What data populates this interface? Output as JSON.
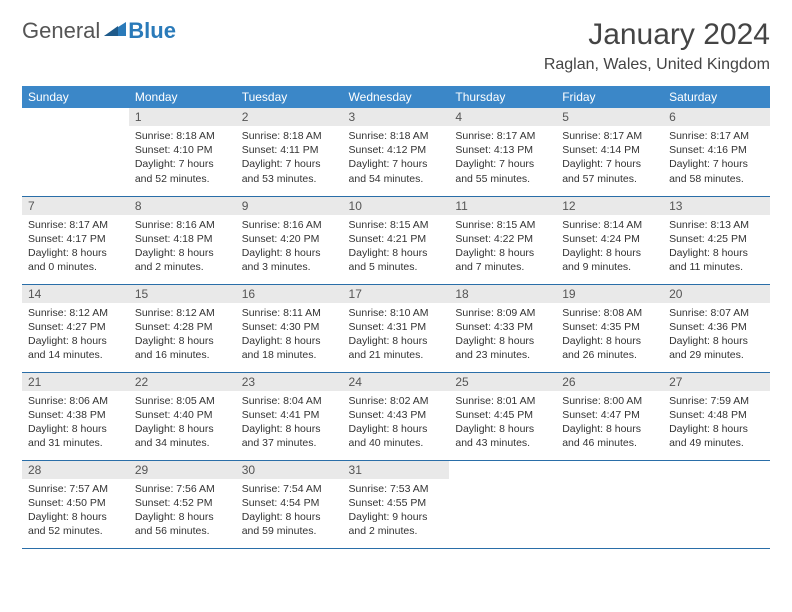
{
  "logo": {
    "text1": "General",
    "text2": "Blue"
  },
  "title": "January 2024",
  "location": "Raglan, Wales, United Kingdom",
  "colors": {
    "header_bg": "#3b87c8",
    "header_text": "#ffffff",
    "daynum_bg": "#e9e9e9",
    "daynum_text": "#555555",
    "row_border": "#2a6ea8",
    "body_text": "#333333",
    "logo_gray": "#555555",
    "logo_blue": "#2a7ab9",
    "page_bg": "#ffffff"
  },
  "typography": {
    "title_fontsize": 30,
    "location_fontsize": 16,
    "dayheader_fontsize": 12,
    "daynum_fontsize": 12,
    "body_fontsize": 10.5
  },
  "day_headers": [
    "Sunday",
    "Monday",
    "Tuesday",
    "Wednesday",
    "Thursday",
    "Friday",
    "Saturday"
  ],
  "weeks": [
    [
      null,
      {
        "n": "1",
        "sr": "8:18 AM",
        "ss": "4:10 PM",
        "dl": "7 hours and 52 minutes."
      },
      {
        "n": "2",
        "sr": "8:18 AM",
        "ss": "4:11 PM",
        "dl": "7 hours and 53 minutes."
      },
      {
        "n": "3",
        "sr": "8:18 AM",
        "ss": "4:12 PM",
        "dl": "7 hours and 54 minutes."
      },
      {
        "n": "4",
        "sr": "8:17 AM",
        "ss": "4:13 PM",
        "dl": "7 hours and 55 minutes."
      },
      {
        "n": "5",
        "sr": "8:17 AM",
        "ss": "4:14 PM",
        "dl": "7 hours and 57 minutes."
      },
      {
        "n": "6",
        "sr": "8:17 AM",
        "ss": "4:16 PM",
        "dl": "7 hours and 58 minutes."
      }
    ],
    [
      {
        "n": "7",
        "sr": "8:17 AM",
        "ss": "4:17 PM",
        "dl": "8 hours and 0 minutes."
      },
      {
        "n": "8",
        "sr": "8:16 AM",
        "ss": "4:18 PM",
        "dl": "8 hours and 2 minutes."
      },
      {
        "n": "9",
        "sr": "8:16 AM",
        "ss": "4:20 PM",
        "dl": "8 hours and 3 minutes."
      },
      {
        "n": "10",
        "sr": "8:15 AM",
        "ss": "4:21 PM",
        "dl": "8 hours and 5 minutes."
      },
      {
        "n": "11",
        "sr": "8:15 AM",
        "ss": "4:22 PM",
        "dl": "8 hours and 7 minutes."
      },
      {
        "n": "12",
        "sr": "8:14 AM",
        "ss": "4:24 PM",
        "dl": "8 hours and 9 minutes."
      },
      {
        "n": "13",
        "sr": "8:13 AM",
        "ss": "4:25 PM",
        "dl": "8 hours and 11 minutes."
      }
    ],
    [
      {
        "n": "14",
        "sr": "8:12 AM",
        "ss": "4:27 PM",
        "dl": "8 hours and 14 minutes."
      },
      {
        "n": "15",
        "sr": "8:12 AM",
        "ss": "4:28 PM",
        "dl": "8 hours and 16 minutes."
      },
      {
        "n": "16",
        "sr": "8:11 AM",
        "ss": "4:30 PM",
        "dl": "8 hours and 18 minutes."
      },
      {
        "n": "17",
        "sr": "8:10 AM",
        "ss": "4:31 PM",
        "dl": "8 hours and 21 minutes."
      },
      {
        "n": "18",
        "sr": "8:09 AM",
        "ss": "4:33 PM",
        "dl": "8 hours and 23 minutes."
      },
      {
        "n": "19",
        "sr": "8:08 AM",
        "ss": "4:35 PM",
        "dl": "8 hours and 26 minutes."
      },
      {
        "n": "20",
        "sr": "8:07 AM",
        "ss": "4:36 PM",
        "dl": "8 hours and 29 minutes."
      }
    ],
    [
      {
        "n": "21",
        "sr": "8:06 AM",
        "ss": "4:38 PM",
        "dl": "8 hours and 31 minutes."
      },
      {
        "n": "22",
        "sr": "8:05 AM",
        "ss": "4:40 PM",
        "dl": "8 hours and 34 minutes."
      },
      {
        "n": "23",
        "sr": "8:04 AM",
        "ss": "4:41 PM",
        "dl": "8 hours and 37 minutes."
      },
      {
        "n": "24",
        "sr": "8:02 AM",
        "ss": "4:43 PM",
        "dl": "8 hours and 40 minutes."
      },
      {
        "n": "25",
        "sr": "8:01 AM",
        "ss": "4:45 PM",
        "dl": "8 hours and 43 minutes."
      },
      {
        "n": "26",
        "sr": "8:00 AM",
        "ss": "4:47 PM",
        "dl": "8 hours and 46 minutes."
      },
      {
        "n": "27",
        "sr": "7:59 AM",
        "ss": "4:48 PM",
        "dl": "8 hours and 49 minutes."
      }
    ],
    [
      {
        "n": "28",
        "sr": "7:57 AM",
        "ss": "4:50 PM",
        "dl": "8 hours and 52 minutes."
      },
      {
        "n": "29",
        "sr": "7:56 AM",
        "ss": "4:52 PM",
        "dl": "8 hours and 56 minutes."
      },
      {
        "n": "30",
        "sr": "7:54 AM",
        "ss": "4:54 PM",
        "dl": "8 hours and 59 minutes."
      },
      {
        "n": "31",
        "sr": "7:53 AM",
        "ss": "4:55 PM",
        "dl": "9 hours and 2 minutes."
      },
      null,
      null,
      null
    ]
  ],
  "labels": {
    "sunrise": "Sunrise:",
    "sunset": "Sunset:",
    "daylight": "Daylight:"
  }
}
